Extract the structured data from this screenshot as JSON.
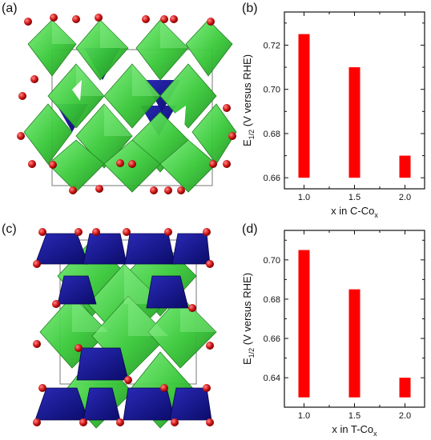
{
  "panels": {
    "a": {
      "label": "(a)"
    },
    "b": {
      "label": "(b)"
    },
    "c": {
      "label": "(c)"
    },
    "d": {
      "label": "(d)"
    }
  },
  "colors": {
    "octahedra": "#3fd43f",
    "tetrahedra": "#14148f",
    "oxygen": "#d41a1a",
    "bar": "#ff0000"
  },
  "chart_data": [
    {
      "type": "bar",
      "panel": "(b)",
      "categories": [
        "1.0",
        "1.5",
        "2.0"
      ],
      "values": [
        0.725,
        0.71,
        0.67
      ],
      "bar_base": 0.66,
      "xlabel_main": "x in C-Co",
      "xlabel_sub": "x",
      "ylabel_pre": "E",
      "ylabel_sub": "1/2",
      "ylabel_post": " (V versus RHE)",
      "ylim": [
        0.655,
        0.735
      ],
      "yticks": [
        "0.66",
        "0.68",
        "0.70",
        "0.72"
      ],
      "ytick_values": [
        0.66,
        0.68,
        0.7,
        0.72
      ],
      "grid": false
    },
    {
      "type": "bar",
      "panel": "(d)",
      "categories": [
        "1.0",
        "1.5",
        "2.0"
      ],
      "values": [
        0.705,
        0.685,
        0.64
      ],
      "bar_base": 0.63,
      "xlabel_main": "x in T-Co",
      "xlabel_sub": "x",
      "ylabel_pre": "E",
      "ylabel_sub": "1/2",
      "ylabel_post": " (V versus RHE)",
      "ylim": [
        0.625,
        0.715
      ],
      "yticks": [
        "0.64",
        "0.66",
        "0.68",
        "0.70"
      ],
      "ytick_values": [
        0.64,
        0.66,
        0.68,
        0.7
      ],
      "grid": false
    }
  ]
}
